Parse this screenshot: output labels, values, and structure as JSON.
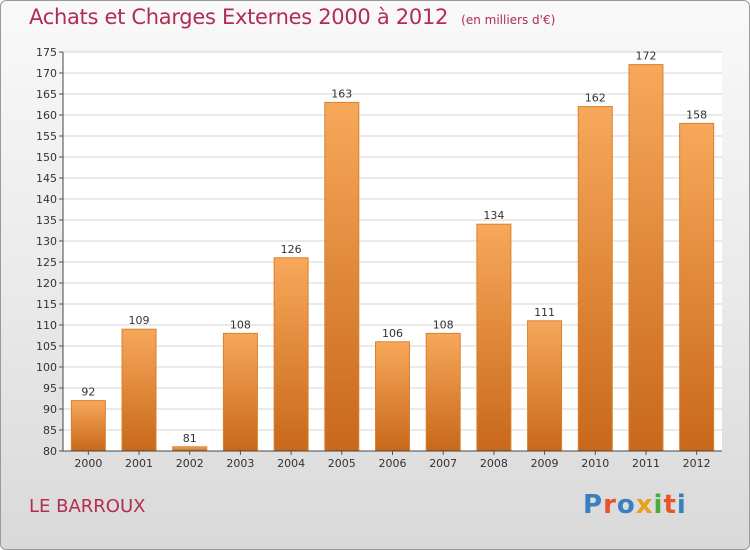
{
  "header": {
    "title": "Achats et Charges Externes 2000 à 2012",
    "subtitle": "(en milliers d'€)"
  },
  "footer": {
    "commune": "LE BARROUX",
    "logo_text": "Proxiti"
  },
  "colors": {
    "accent": "#b32c52",
    "bar_light": "#f7a85a",
    "bar_dark": "#c8681a",
    "logo": [
      "#3a7fc0",
      "#e8552a",
      "#3a7fc0",
      "#e8a020",
      "#4fa83c",
      "#e8552a",
      "#3a7fc0"
    ]
  },
  "chart_data": {
    "type": "bar",
    "title": "Achats et Charges Externes 2000 à 2012",
    "subtitle": "(en milliers d'€)",
    "xlabel": "",
    "ylabel": "",
    "categories": [
      "2000",
      "2001",
      "2002",
      "2003",
      "2004",
      "2005",
      "2006",
      "2007",
      "2008",
      "2009",
      "2010",
      "2011",
      "2012"
    ],
    "values": [
      92,
      109,
      81,
      108,
      126,
      163,
      106,
      108,
      134,
      111,
      162,
      172,
      158
    ],
    "ylim": [
      80,
      175
    ],
    "yticks": [
      80,
      85,
      90,
      95,
      100,
      105,
      110,
      115,
      120,
      125,
      130,
      135,
      140,
      145,
      150,
      155,
      160,
      165,
      170,
      175
    ],
    "grid": true,
    "data_labels": true
  }
}
